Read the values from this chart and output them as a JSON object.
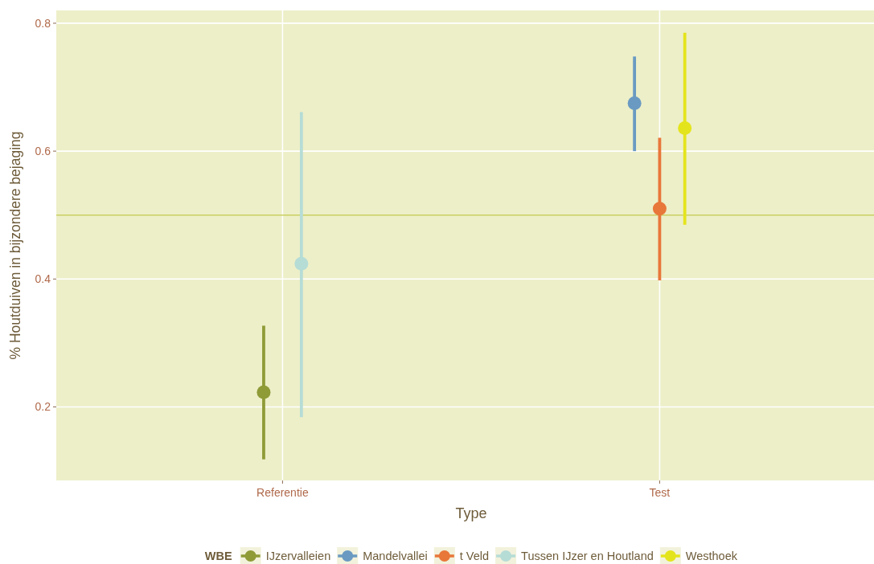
{
  "chart_data": {
    "type": "scatter",
    "xlabel": "Type",
    "ylabel": "% Houtduiven in bijzondere bejaging",
    "legend_title": "WBE",
    "categories": [
      "Referentie",
      "Test"
    ],
    "ylim": [
      0.085,
      0.82
    ],
    "yticks": [
      0.2,
      0.4,
      0.6,
      0.8
    ],
    "grid": true,
    "legend": "bottom",
    "marker": "circle",
    "ref_lines": [
      {
        "axis": "y",
        "value": 0.5,
        "color": "#c9cf62"
      }
    ],
    "series": [
      {
        "name": "IJzervalleien",
        "color": "#8e9b37",
        "values": [
          0.223,
          null
        ],
        "errors": [
          [
            0.118,
            0.327
          ],
          null
        ]
      },
      {
        "name": "Mandelvallei",
        "color": "#6a9ac2",
        "values": [
          null,
          0.675
        ],
        "errors": [
          null,
          [
            0.6,
            0.748
          ]
        ]
      },
      {
        "name": "t Veld",
        "color": "#e8773a",
        "values": [
          null,
          0.51
        ],
        "errors": [
          null,
          [
            0.398,
            0.621
          ]
        ]
      },
      {
        "name": "Tussen IJzer en Houtland",
        "color": "#b6dcd6",
        "values": [
          0.424,
          null
        ],
        "errors": [
          [
            0.184,
            0.661
          ],
          null
        ]
      },
      {
        "name": "Westhoek",
        "color": "#e4e41c",
        "values": [
          null,
          0.636
        ],
        "errors": [
          null,
          [
            0.485,
            0.785
          ]
        ]
      }
    ]
  }
}
